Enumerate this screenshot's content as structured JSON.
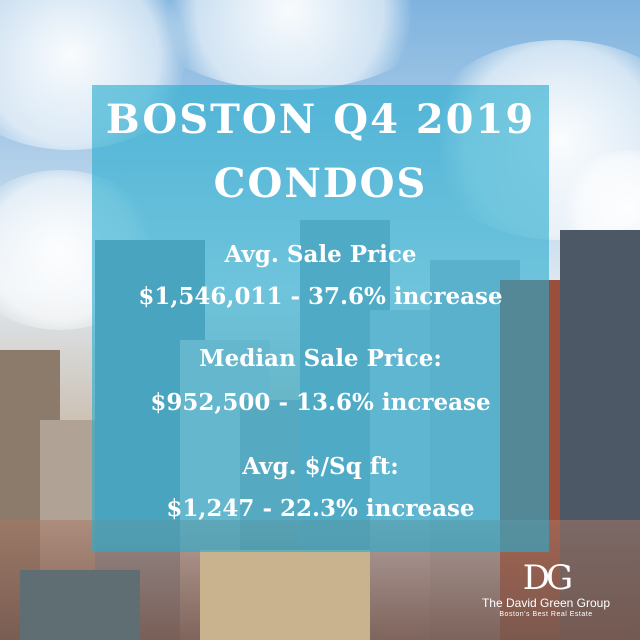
{
  "colors": {
    "panel": "#28acce",
    "text": "#ffffff"
  },
  "title": {
    "line1": "BOSTON Q4 2019",
    "line2": "CONDOS"
  },
  "stats": [
    {
      "label": "Avg. Sale Price",
      "value": "$1,546,011 - 37.6% increase"
    },
    {
      "label": "Median Sale Price:",
      "value": "$952,500 - 13.6% increase"
    },
    {
      "label": "Avg. $/Sq ft:",
      "value": "$1,247 - 22.3% increase"
    }
  ],
  "logo": {
    "mark": "DG",
    "name": "The David Green Group",
    "sub": "Boston's Best Real Estate"
  }
}
